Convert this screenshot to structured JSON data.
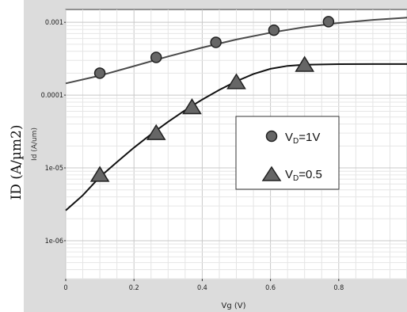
{
  "chart_data": {
    "type": "scatter",
    "title": "",
    "outer_ylabel": "ID (A/µm2)",
    "inner_ylabel": "Id (A/um)",
    "xlabel": "Vg (V)",
    "xlim": [
      0,
      1.0
    ],
    "ylim": [
      3e-07,
      0.0015
    ],
    "y_scale": "log",
    "x_ticks": [
      "0",
      "0.2",
      "0.4",
      "0.6",
      "0.8"
    ],
    "x_tick_values": [
      0,
      0.2,
      0.4,
      0.6,
      0.8
    ],
    "y_ticks": [
      "1e-06",
      "1e-05",
      "0.0001",
      "0.001"
    ],
    "y_tick_values": [
      1e-06,
      1e-05,
      0.0001,
      0.001
    ],
    "grid": true,
    "legend_position": "center-right",
    "colors": {
      "background": "#dcdcdc",
      "plot_bg": "#ffffff",
      "curve": "#3a3a3a",
      "marker": "#666666",
      "marker_edge": "#222222"
    },
    "series": [
      {
        "name": "V",
        "name_sub": "D",
        "name_suffix": "=1V",
        "marker": "circle",
        "points": [
          {
            "x": 0.1,
            "y": 0.0002
          },
          {
            "x": 0.265,
            "y": 0.00033
          },
          {
            "x": 0.44,
            "y": 0.00053
          },
          {
            "x": 0.61,
            "y": 0.00078
          },
          {
            "x": 0.77,
            "y": 0.00102
          }
        ],
        "curve": [
          {
            "x": 0.0,
            "y": 0.000145
          },
          {
            "x": 0.1,
            "y": 0.000185
          },
          {
            "x": 0.2,
            "y": 0.00025
          },
          {
            "x": 0.3,
            "y": 0.00034
          },
          {
            "x": 0.4,
            "y": 0.00045
          },
          {
            "x": 0.5,
            "y": 0.00058
          },
          {
            "x": 0.6,
            "y": 0.00072
          },
          {
            "x": 0.7,
            "y": 0.00086
          },
          {
            "x": 0.8,
            "y": 0.00098
          },
          {
            "x": 0.9,
            "y": 0.00108
          },
          {
            "x": 1.0,
            "y": 0.00116
          }
        ]
      },
      {
        "name": "V",
        "name_sub": "D",
        "name_suffix": "=0.5",
        "marker": "triangle",
        "points": [
          {
            "x": 0.1,
            "y": 8e-06
          },
          {
            "x": 0.265,
            "y": 3e-05
          },
          {
            "x": 0.37,
            "y": 6.8e-05
          },
          {
            "x": 0.5,
            "y": 0.00015
          },
          {
            "x": 0.7,
            "y": 0.00026
          }
        ],
        "curve": [
          {
            "x": 0.0,
            "y": 2.6e-06
          },
          {
            "x": 0.05,
            "y": 4.2e-06
          },
          {
            "x": 0.1,
            "y": 7.5e-06
          },
          {
            "x": 0.15,
            "y": 1.2e-05
          },
          {
            "x": 0.2,
            "y": 1.9e-05
          },
          {
            "x": 0.25,
            "y": 2.9e-05
          },
          {
            "x": 0.3,
            "y": 4.3e-05
          },
          {
            "x": 0.35,
            "y": 6.2e-05
          },
          {
            "x": 0.4,
            "y": 8.7e-05
          },
          {
            "x": 0.45,
            "y": 0.000118
          },
          {
            "x": 0.5,
            "y": 0.000155
          },
          {
            "x": 0.55,
            "y": 0.000195
          },
          {
            "x": 0.6,
            "y": 0.00023
          },
          {
            "x": 0.65,
            "y": 0.000252
          },
          {
            "x": 0.7,
            "y": 0.000262
          },
          {
            "x": 0.8,
            "y": 0.000266
          },
          {
            "x": 0.9,
            "y": 0.000267
          },
          {
            "x": 1.0,
            "y": 0.000267
          }
        ]
      }
    ]
  }
}
